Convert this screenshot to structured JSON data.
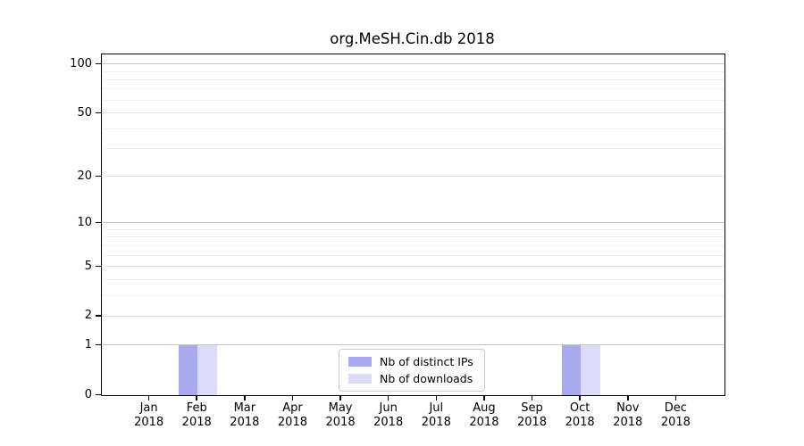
{
  "title": "org.MeSH.Cin.db 2018",
  "chart_data": {
    "type": "bar",
    "title": "org.MeSH.Cin.db 2018",
    "x_axis": {
      "categories": [
        "Jan",
        "Feb",
        "Mar",
        "Apr",
        "May",
        "Jun",
        "Jul",
        "Aug",
        "Sep",
        "Oct",
        "Nov",
        "Dec"
      ],
      "year": "2018"
    },
    "series": [
      {
        "name": "Nb of distinct IPs",
        "color": "#a9a9f0",
        "values": [
          0,
          1,
          0,
          0,
          0,
          0,
          0,
          0,
          0,
          1,
          0,
          0
        ]
      },
      {
        "name": "Nb of downloads",
        "color": "#dcdcfa",
        "values": [
          0,
          1,
          0,
          0,
          0,
          0,
          0,
          0,
          0,
          1,
          0,
          0
        ]
      }
    ],
    "y_axis": {
      "scale": "log1p",
      "display_max": 115,
      "tick_labels": [
        "100",
        "50",
        "20",
        "10",
        "5",
        "2",
        "1",
        "0"
      ],
      "tick_values": [
        100,
        50,
        20,
        10,
        5,
        2,
        1,
        0
      ],
      "gridlines": {
        "decade": [
          1,
          10,
          100
        ],
        "labeled": [
          2,
          5,
          20,
          50
        ],
        "minor": [
          3,
          4,
          6,
          7,
          8,
          9,
          30,
          40,
          60,
          70,
          80,
          90
        ]
      }
    },
    "legend": {
      "position": "bottom-center"
    }
  }
}
